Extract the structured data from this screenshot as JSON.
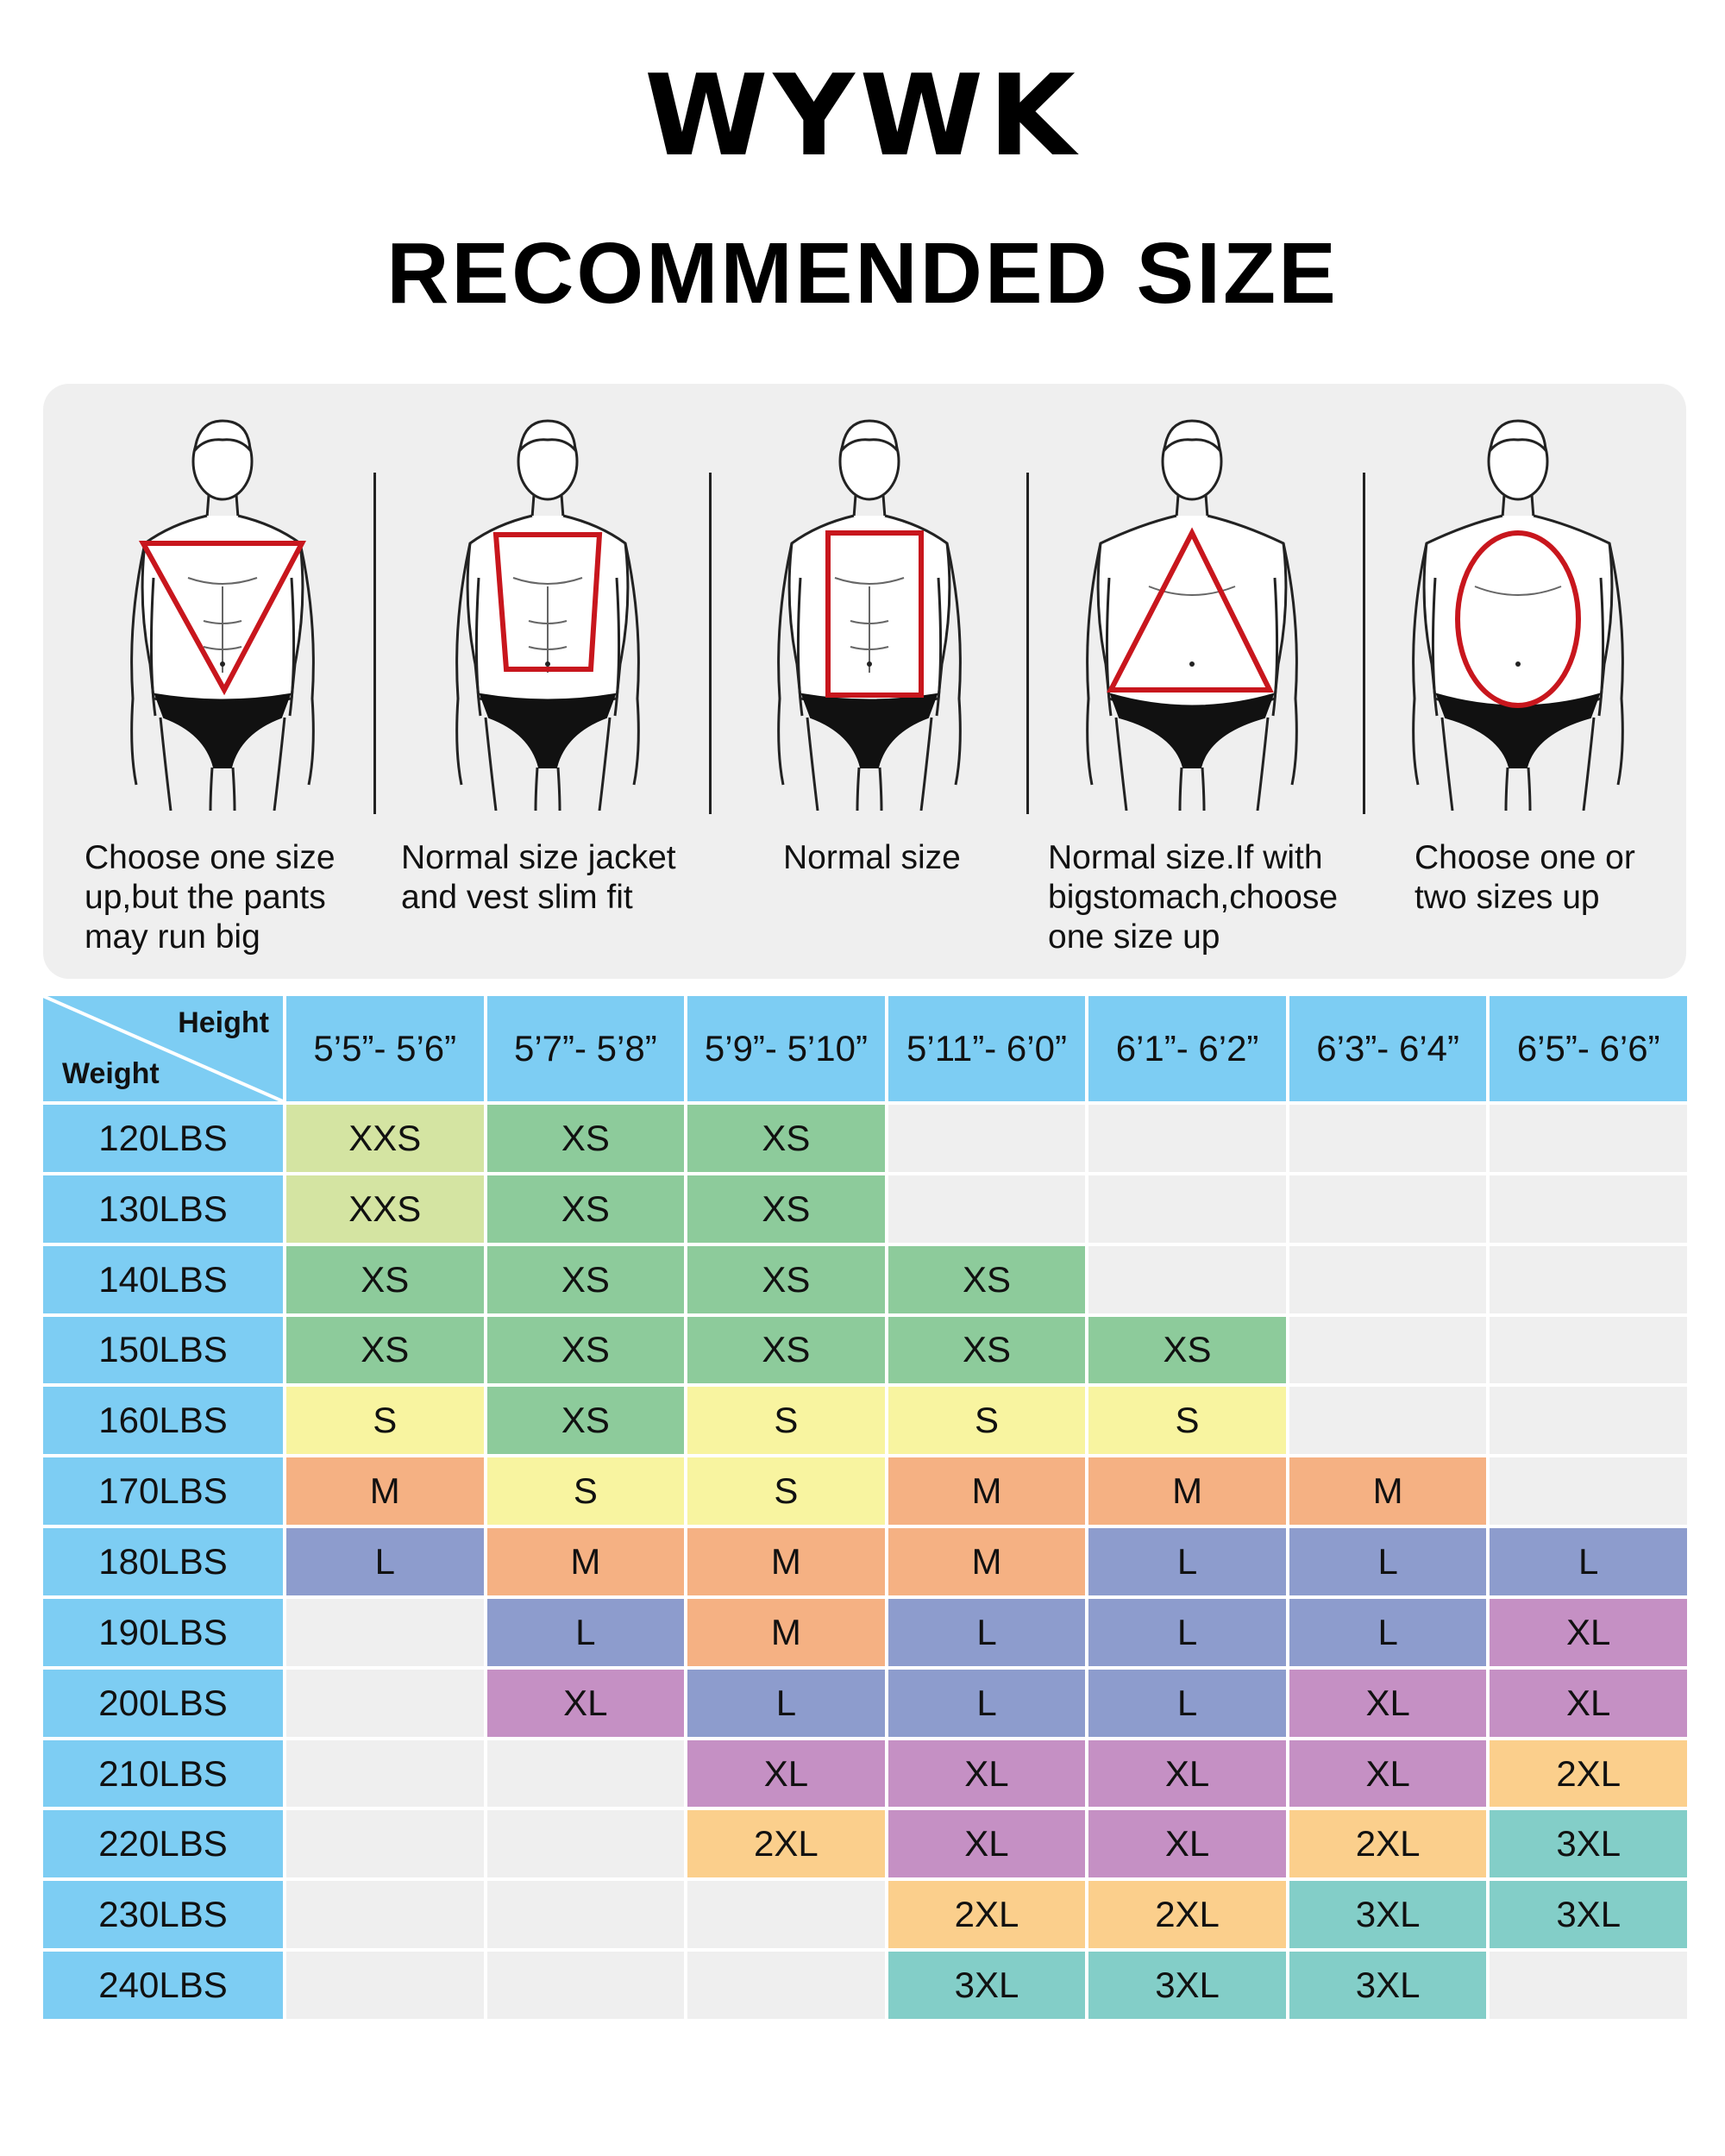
{
  "brand": "WYWK",
  "title": "RECOMMENDED SIZE",
  "body_types": [
    {
      "shape": "inverted-triangle",
      "caption": [
        "Choose one size",
        "up,but the pants",
        "may run big"
      ]
    },
    {
      "shape": "trapezoid",
      "caption": [
        "Normal size jacket",
        "and vest slim fit"
      ]
    },
    {
      "shape": "rectangle",
      "caption": [
        "Normal size"
      ]
    },
    {
      "shape": "triangle",
      "caption": [
        "Normal size.If with",
        "bigstomach,choose",
        "one size up"
      ]
    },
    {
      "shape": "oval",
      "caption": [
        "Choose one or",
        "two sizes up"
      ]
    }
  ],
  "table": {
    "corner_height_label": "Height",
    "corner_weight_label": "Weight",
    "heights": [
      "5’5”- 5’6”",
      "5’7”- 5’8”",
      "5’9”- 5’10”",
      "5’11”- 6’0”",
      "6’1”- 6’2”",
      "6’3”- 6’4”",
      "6’5”- 6’6”"
    ],
    "rows": [
      {
        "weight": "120LBS",
        "sizes": [
          "XXS",
          "XS",
          "XS",
          "",
          "",
          "",
          ""
        ]
      },
      {
        "weight": "130LBS",
        "sizes": [
          "XXS",
          "XS",
          "XS",
          "",
          "",
          "",
          ""
        ]
      },
      {
        "weight": "140LBS",
        "sizes": [
          "XS",
          "XS",
          "XS",
          "XS",
          "",
          "",
          ""
        ]
      },
      {
        "weight": "150LBS",
        "sizes": [
          "XS",
          "XS",
          "XS",
          "XS",
          "XS",
          "",
          ""
        ]
      },
      {
        "weight": "160LBS",
        "sizes": [
          "S",
          "XS",
          "S",
          "S",
          "S",
          "",
          ""
        ]
      },
      {
        "weight": "170LBS",
        "sizes": [
          "M",
          "S",
          "S",
          "M",
          "M",
          "M",
          ""
        ]
      },
      {
        "weight": "180LBS",
        "sizes": [
          "L",
          "M",
          "M",
          "M",
          "L",
          "L",
          "L"
        ]
      },
      {
        "weight": "190LBS",
        "sizes": [
          "",
          "L",
          "M",
          "L",
          "L",
          "L",
          "XL"
        ]
      },
      {
        "weight": "200LBS",
        "sizes": [
          "",
          "XL",
          "L",
          "L",
          "L",
          "XL",
          "XL"
        ]
      },
      {
        "weight": "210LBS",
        "sizes": [
          "",
          "",
          "XL",
          "XL",
          "XL",
          "XL",
          "2XL"
        ]
      },
      {
        "weight": "220LBS",
        "sizes": [
          "",
          "",
          "2XL",
          "XL",
          "XL",
          "2XL",
          "3XL"
        ]
      },
      {
        "weight": "230LBS",
        "sizes": [
          "",
          "",
          "",
          "2XL",
          "2XL",
          "3XL",
          "3XL"
        ]
      },
      {
        "weight": "240LBS",
        "sizes": [
          "",
          "",
          "",
          "3XL",
          "3XL",
          "3XL",
          ""
        ]
      }
    ]
  },
  "colors": {
    "header": "#7dcdf3",
    "empty": "#efefef",
    "XXS": "#d4e4a2",
    "XS": "#8dcb9b",
    "S": "#f8f4a0",
    "M": "#f5b183",
    "L": "#8d9ccd",
    "XL": "#c590c4",
    "2XL": "#fbcf8c",
    "3XL": "#83cec8",
    "shape_outline": "#c8161d"
  }
}
